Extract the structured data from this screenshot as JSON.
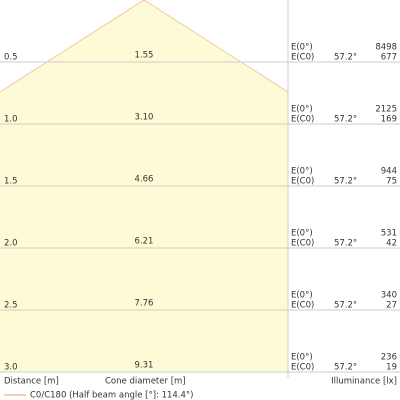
{
  "rows": [
    {
      "distance": "0.5",
      "diameter": "1.55",
      "e0_label": "E(0°)",
      "ec0_label": "E(C0)",
      "angle": "57.2°",
      "e0": "8498",
      "ec0": "677"
    },
    {
      "distance": "1.0",
      "diameter": "3.10",
      "e0_label": "E(0°)",
      "ec0_label": "E(C0)",
      "angle": "57.2°",
      "e0": "2125",
      "ec0": "169"
    },
    {
      "distance": "1.5",
      "diameter": "4.66",
      "e0_label": "E(0°)",
      "ec0_label": "E(C0)",
      "angle": "57.2°",
      "e0": "944",
      "ec0": "75"
    },
    {
      "distance": "2.0",
      "diameter": "6.21",
      "e0_label": "E(0°)",
      "ec0_label": "E(C0)",
      "angle": "57.2°",
      "e0": "531",
      "ec0": "42"
    },
    {
      "distance": "2.5",
      "diameter": "7.76",
      "e0_label": "E(0°)",
      "ec0_label": "E(C0)",
      "angle": "57.2°",
      "e0": "340",
      "ec0": "27"
    },
    {
      "distance": "3.0",
      "diameter": "9.31",
      "e0_label": "E(0°)",
      "ec0_label": "E(C0)",
      "angle": "57.2°",
      "e0": "236",
      "ec0": "19"
    }
  ],
  "footer": {
    "distance_label": "Distance [m]",
    "diameter_label": "Cone diameter [m]",
    "illuminance_label": "Illuminance [lx]"
  },
  "legend": {
    "label": "C0/C180 (Half beam angle [°]: 114.4°)"
  }
}
